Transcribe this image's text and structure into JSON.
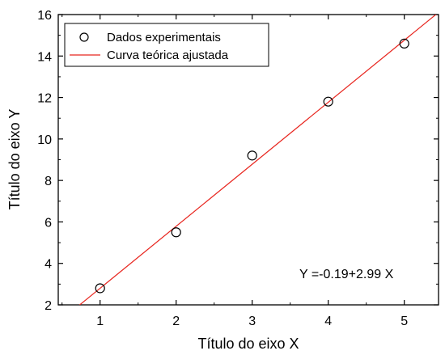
{
  "chart_data": {
    "type": "scatter",
    "xlabel": "Título do eixo X",
    "ylabel": "Título do eixo Y",
    "xlim": [
      0.45,
      5.45
    ],
    "ylim": [
      2,
      16
    ],
    "x_ticks": [
      1,
      2,
      3,
      4,
      5
    ],
    "y_ticks": [
      2,
      4,
      6,
      8,
      10,
      12,
      14,
      16
    ],
    "grid": false,
    "legend_position": "top-left",
    "series": [
      {
        "name": "Dados experimentais",
        "kind": "points",
        "marker": "open-circle",
        "color": "#000000",
        "x": [
          1,
          2,
          3,
          4,
          5
        ],
        "y": [
          2.8,
          5.5,
          9.2,
          11.8,
          14.6
        ]
      },
      {
        "name": "Curva teórica ajustada",
        "kind": "line",
        "color": "#e8261f",
        "intercept": -0.19,
        "slope": 2.99
      }
    ],
    "annotation": "Y =-0.19+2.99 X"
  }
}
